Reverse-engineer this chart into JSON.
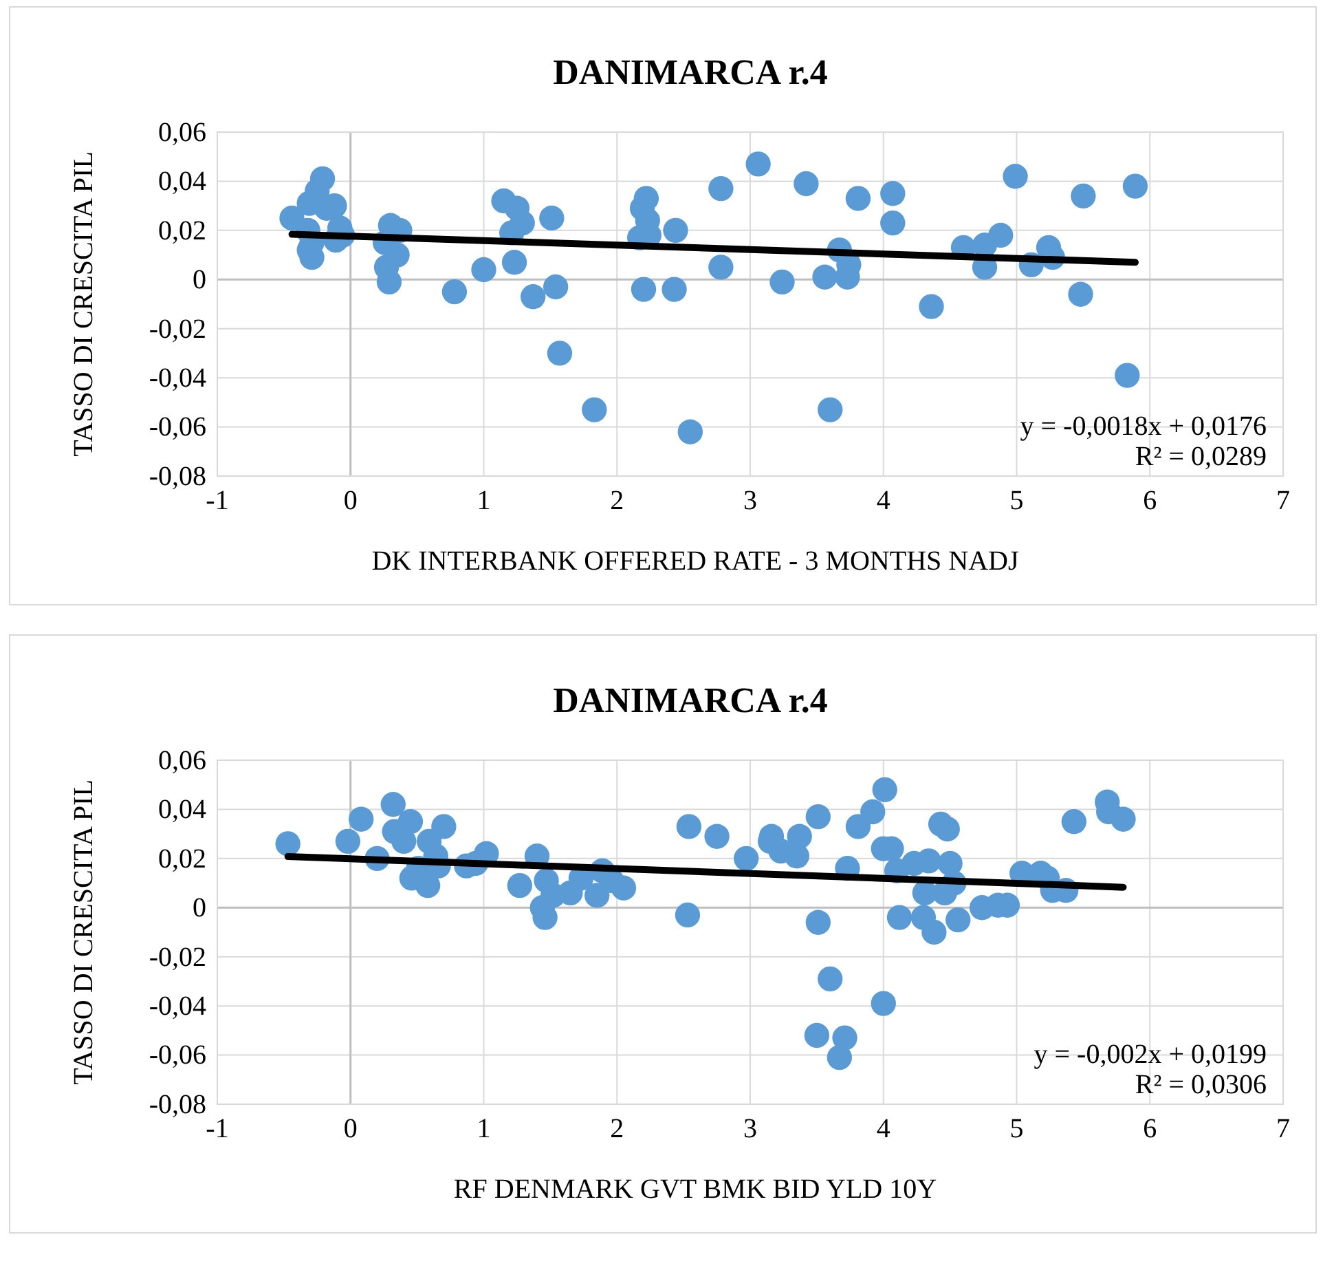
{
  "chart_data": [
    {
      "type": "scatter",
      "title": "DANIMARCA r.4",
      "xlabel": "DK INTERBANK OFFERED RATE - 3 MONTHS NADJ",
      "ylabel": "TASSO DI CRESCITA PIL",
      "grid": true,
      "xlim": [
        -1,
        7
      ],
      "xticks": [
        -1,
        0,
        1,
        2,
        3,
        4,
        5,
        6,
        7
      ],
      "ylim": [
        -0.08,
        0.06
      ],
      "yticks": [
        {
          "value": -0.08,
          "label": "-0,08"
        },
        {
          "value": -0.06,
          "label": "-0,06"
        },
        {
          "value": -0.04,
          "label": "-0,04"
        },
        {
          "value": -0.02,
          "label": "-0,02"
        },
        0,
        {
          "value": 0.02,
          "label": "0,02"
        },
        {
          "value": 0.04,
          "label": "0,04"
        },
        {
          "value": 0.06,
          "label": "0,06"
        }
      ],
      "annotations": [
        "y = -0,0018x + 0,0176",
        "R² = 0,0289"
      ],
      "series": [
        {
          "marker": "circle",
          "color": "#5b9bd5",
          "x": [
            -0.44,
            -0.21,
            -0.25,
            -0.31,
            -0.12,
            -0.18,
            -0.32,
            -0.29,
            -0.29,
            -0.31,
            -0.08,
            -0.11,
            -0.06,
            0.3,
            0.37,
            0.26,
            0.35,
            0.27,
            0.29,
            0.78,
            1.0,
            1.15,
            1.25,
            1.29,
            1.21,
            1.23,
            1.51,
            1.37,
            1.54,
            1.57,
            1.83,
            2.22,
            2.19,
            2.23,
            2.17,
            2.24,
            2.2,
            2.44,
            2.43,
            2.55,
            2.78,
            2.78,
            3.06,
            3.42,
            3.81,
            4.07,
            4.07,
            3.24,
            3.56,
            3.67,
            3.74,
            3.73,
            3.6,
            4.36,
            4.6,
            4.76,
            4.76,
            4.88,
            4.99,
            5.11,
            5.24,
            5.27,
            5.5,
            5.48,
            5.89,
            5.83
          ],
          "values": [
            0.025,
            0.041,
            0.036,
            0.031,
            0.03,
            0.029,
            0.02,
            0.015,
            0.009,
            0.012,
            0.021,
            0.016,
            0.018,
            0.022,
            0.02,
            0.015,
            0.01,
            0.005,
            -0.001,
            -0.005,
            0.004,
            0.032,
            0.029,
            0.023,
            0.019,
            0.007,
            0.025,
            -0.007,
            -0.003,
            -0.03,
            -0.053,
            0.033,
            0.029,
            0.024,
            0.017,
            0.018,
            -0.004,
            0.02,
            -0.004,
            -0.062,
            0.037,
            0.005,
            0.047,
            0.039,
            0.033,
            0.035,
            0.023,
            -0.001,
            0.001,
            0.012,
            0.006,
            0.001,
            -0.053,
            -0.011,
            0.013,
            0.014,
            0.005,
            0.018,
            0.042,
            0.006,
            0.013,
            0.009,
            0.034,
            -0.006,
            0.038,
            -0.039
          ]
        },
        {
          "type": "line",
          "color": "#000000",
          "x": [
            -0.44,
            5.89
          ],
          "values": [
            0.0184,
            0.007
          ]
        }
      ]
    },
    {
      "type": "scatter",
      "title": "DANIMARCA r.4",
      "xlabel": "RF DENMARK GVT BMK BID YLD 10Y",
      "ylabel": "TASSO DI CRESCITA PIL",
      "grid": true,
      "xlim": [
        -1,
        7
      ],
      "xticks": [
        -1,
        0,
        1,
        2,
        3,
        4,
        5,
        6,
        7
      ],
      "ylim": [
        -0.08,
        0.06
      ],
      "yticks": [
        {
          "value": -0.08,
          "label": "-0,08"
        },
        {
          "value": -0.06,
          "label": "-0,06"
        },
        {
          "value": -0.04,
          "label": "-0,04"
        },
        {
          "value": -0.02,
          "label": "-0,02"
        },
        0,
        {
          "value": 0.02,
          "label": "0,02"
        },
        {
          "value": 0.04,
          "label": "0,04"
        },
        {
          "value": 0.06,
          "label": "0,06"
        }
      ],
      "annotations": [
        "y = -0,002x + 0,0199",
        "R² = 0,0306"
      ],
      "series": [
        {
          "marker": "circle",
          "color": "#5b9bd5",
          "x": [
            -0.47,
            -0.02,
            0.08,
            0.2,
            0.32,
            0.33,
            0.45,
            0.4,
            0.59,
            0.7,
            0.64,
            0.51,
            0.66,
            0.46,
            0.58,
            0.87,
            0.94,
            1.02,
            1.27,
            1.4,
            1.47,
            1.52,
            1.44,
            1.46,
            1.65,
            1.73,
            1.89,
            1.85,
            1.96,
            2.05,
            2.53,
            2.54,
            2.75,
            2.97,
            3.16,
            3.15,
            3.23,
            3.35,
            3.37,
            3.51,
            3.51,
            3.6,
            3.5,
            3.71,
            3.67,
            3.73,
            3.81,
            3.92,
            4.01,
            4.0,
            4.0,
            4.06,
            4.1,
            4.12,
            4.23,
            4.34,
            4.31,
            4.3,
            4.38,
            4.43,
            4.48,
            4.5,
            4.53,
            4.46,
            4.56,
            4.74,
            4.86,
            4.93,
            5.04,
            5.18,
            5.23,
            5.27,
            5.37,
            5.43,
            5.68,
            5.69,
            5.8
          ],
          "values": [
            0.026,
            0.027,
            0.036,
            0.02,
            0.042,
            0.031,
            0.035,
            0.027,
            0.027,
            0.033,
            0.021,
            0.016,
            0.017,
            0.012,
            0.009,
            0.017,
            0.018,
            0.022,
            0.009,
            0.021,
            0.011,
            0.005,
            0.0,
            -0.004,
            0.006,
            0.012,
            0.015,
            0.005,
            0.011,
            0.008,
            -0.003,
            0.033,
            0.029,
            0.02,
            0.029,
            0.027,
            0.023,
            0.021,
            0.029,
            0.037,
            -0.006,
            -0.029,
            -0.052,
            -0.053,
            -0.061,
            0.016,
            0.033,
            0.039,
            0.048,
            -0.039,
            0.024,
            0.024,
            0.015,
            -0.004,
            0.018,
            0.019,
            0.006,
            -0.004,
            -0.01,
            0.034,
            0.032,
            0.018,
            0.01,
            0.006,
            -0.005,
            0.0,
            0.001,
            0.001,
            0.014,
            0.014,
            0.012,
            0.007,
            0.007,
            0.035,
            0.043,
            0.039,
            0.036
          ]
        },
        {
          "type": "line",
          "color": "#000000",
          "x": [
            -0.47,
            5.8
          ],
          "values": [
            0.0208,
            0.0083
          ]
        }
      ]
    }
  ]
}
